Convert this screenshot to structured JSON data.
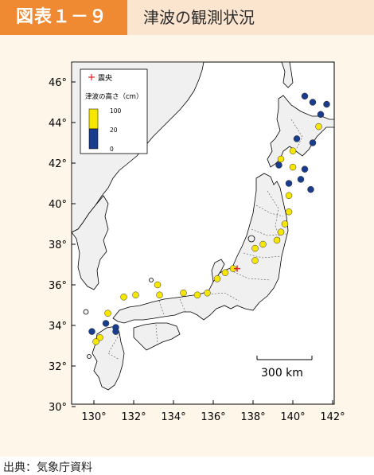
{
  "header": {
    "figure_number": "図表１－９",
    "title": "津波の観測状況"
  },
  "map": {
    "lat_ticks": [
      "46°",
      "44°",
      "42°",
      "40°",
      "38°",
      "36°",
      "34°",
      "32°",
      "30°"
    ],
    "lon_ticks": [
      "130°",
      "132°",
      "134°",
      "136°",
      "138°",
      "140°",
      "142°"
    ],
    "scale_label": "300 km",
    "legend": {
      "epicenter_label": "震央",
      "height_label": "津波の高さ（cm）",
      "levels": [
        "100",
        "20",
        "0"
      ],
      "colors": {
        "high": "#f7e600",
        "low": "#1a3c8c",
        "epicenter": "#e02020"
      }
    },
    "epicenter": {
      "lat": 36.8,
      "lon": 137.2
    },
    "observations": [
      {
        "lat": 45.3,
        "lon": 140.6,
        "level": "low"
      },
      {
        "lat": 45.0,
        "lon": 141.0,
        "level": "low"
      },
      {
        "lat": 44.9,
        "lon": 141.7,
        "level": "low"
      },
      {
        "lat": 44.4,
        "lon": 141.4,
        "level": "low"
      },
      {
        "lat": 43.8,
        "lon": 141.3,
        "level": "high"
      },
      {
        "lat": 43.2,
        "lon": 140.2,
        "level": "low"
      },
      {
        "lat": 43.0,
        "lon": 141.0,
        "level": "low"
      },
      {
        "lat": 42.6,
        "lon": 140.0,
        "level": "high"
      },
      {
        "lat": 42.2,
        "lon": 139.4,
        "level": "high"
      },
      {
        "lat": 41.9,
        "lon": 139.3,
        "level": "low"
      },
      {
        "lat": 41.8,
        "lon": 140.0,
        "level": "high"
      },
      {
        "lat": 41.7,
        "lon": 140.6,
        "level": "low"
      },
      {
        "lat": 41.2,
        "lon": 140.4,
        "level": "low"
      },
      {
        "lat": 41.0,
        "lon": 139.8,
        "level": "low"
      },
      {
        "lat": 40.7,
        "lon": 140.9,
        "level": "low"
      },
      {
        "lat": 40.4,
        "lon": 139.8,
        "level": "high"
      },
      {
        "lat": 39.6,
        "lon": 139.8,
        "level": "high"
      },
      {
        "lat": 39.0,
        "lon": 139.6,
        "level": "high"
      },
      {
        "lat": 38.6,
        "lon": 139.4,
        "level": "high"
      },
      {
        "lat": 38.2,
        "lon": 139.2,
        "level": "high"
      },
      {
        "lat": 38.0,
        "lon": 138.5,
        "level": "high"
      },
      {
        "lat": 37.8,
        "lon": 138.1,
        "level": "high"
      },
      {
        "lat": 37.2,
        "lon": 138.1,
        "level": "high"
      },
      {
        "lat": 36.8,
        "lon": 137.0,
        "level": "high"
      },
      {
        "lat": 36.6,
        "lon": 136.6,
        "level": "high"
      },
      {
        "lat": 36.3,
        "lon": 136.2,
        "level": "high"
      },
      {
        "lat": 35.6,
        "lon": 135.7,
        "level": "high"
      },
      {
        "lat": 35.5,
        "lon": 135.2,
        "level": "high"
      },
      {
        "lat": 35.6,
        "lon": 134.5,
        "level": "high"
      },
      {
        "lat": 35.5,
        "lon": 133.3,
        "level": "high"
      },
      {
        "lat": 35.5,
        "lon": 132.1,
        "level": "high"
      },
      {
        "lat": 35.4,
        "lon": 131.5,
        "level": "high"
      },
      {
        "lat": 36.0,
        "lon": 133.2,
        "level": "high"
      },
      {
        "lat": 34.6,
        "lon": 130.7,
        "level": "high"
      },
      {
        "lat": 34.1,
        "lon": 130.6,
        "level": "low"
      },
      {
        "lat": 33.7,
        "lon": 129.9,
        "level": "low"
      },
      {
        "lat": 33.9,
        "lon": 131.1,
        "level": "low"
      },
      {
        "lat": 33.7,
        "lon": 131.1,
        "level": "low"
      },
      {
        "lat": 33.4,
        "lon": 130.3,
        "level": "high"
      },
      {
        "lat": 33.2,
        "lon": 130.1,
        "level": "high"
      }
    ]
  },
  "footer": {
    "source": "出典：気象庁資料"
  }
}
